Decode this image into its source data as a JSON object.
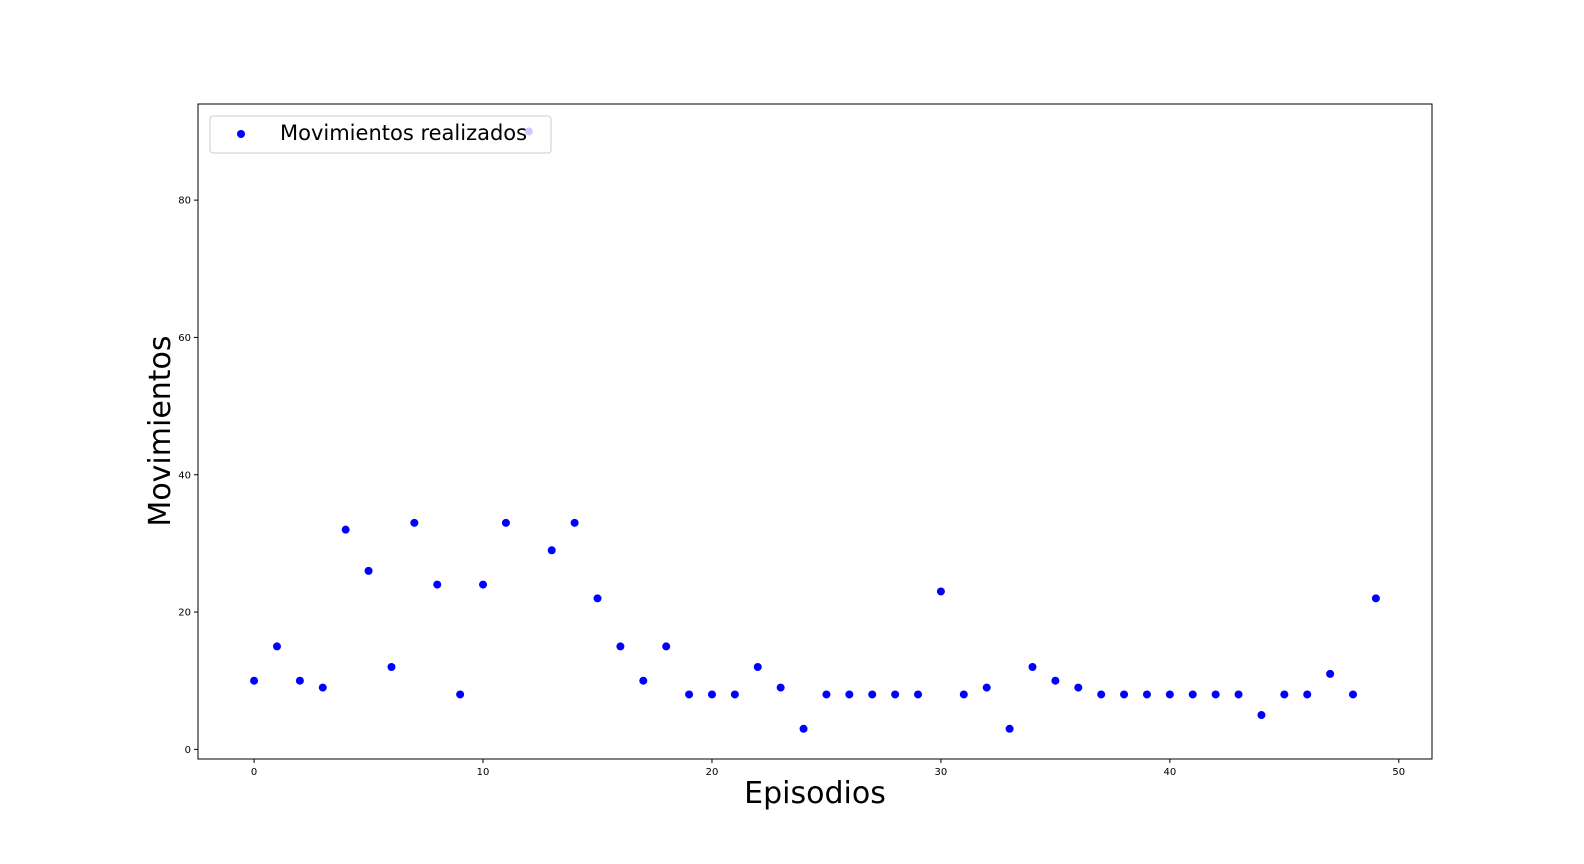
{
  "chart_data": {
    "type": "scatter",
    "title": "",
    "xlabel": "Episodios",
    "ylabel": "Movimientos",
    "xlim": [
      -2.45,
      51.45
    ],
    "ylim": [
      -1.4,
      94.0
    ],
    "xticks": [
      0,
      10,
      20,
      30,
      40,
      50
    ],
    "yticks": [
      0,
      20,
      40,
      60,
      80
    ],
    "grid": false,
    "legend_position": "top-left",
    "series": [
      {
        "name": "Movimientos realizados",
        "color": "#0000ff",
        "x": [
          0,
          1,
          2,
          3,
          4,
          5,
          6,
          7,
          8,
          9,
          10,
          11,
          12,
          13,
          14,
          15,
          16,
          17,
          18,
          19,
          20,
          21,
          22,
          23,
          24,
          25,
          26,
          27,
          28,
          29,
          30,
          31,
          32,
          33,
          34,
          35,
          36,
          37,
          38,
          39,
          40,
          41,
          42,
          43,
          44,
          45,
          46,
          47,
          48,
          49
        ],
        "y": [
          10,
          15,
          10,
          9,
          32,
          26,
          12,
          33,
          24,
          8,
          24,
          33,
          90,
          29,
          33,
          22,
          15,
          10,
          15,
          8,
          8,
          8,
          12,
          9,
          3,
          8,
          8,
          8,
          8,
          8,
          23,
          8,
          9,
          3,
          12,
          10,
          9,
          8,
          8,
          8,
          8,
          8,
          8,
          8,
          5,
          8,
          8,
          11,
          8,
          22
        ]
      }
    ]
  }
}
